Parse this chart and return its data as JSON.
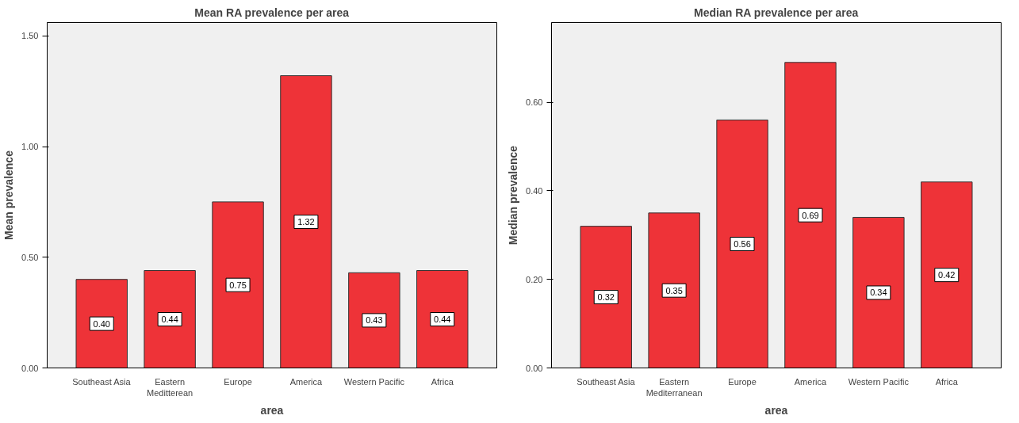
{
  "chart_data": [
    {
      "type": "bar",
      "title": "Mean RA prevalence per area",
      "xlabel": "area",
      "ylabel": "Mean prevalence",
      "categories": [
        "Southeast Asia",
        "Eastern\nMeditterean",
        "Europe",
        "America",
        "Western Pacific",
        "Africa"
      ],
      "values": [
        0.4,
        0.44,
        0.75,
        1.32,
        0.43,
        0.44
      ],
      "value_labels": [
        "0.40",
        "0.44",
        "0.75",
        "1.32",
        "0.43",
        "0.44"
      ],
      "color": "#ee3338",
      "ylim": [
        0,
        1.56
      ],
      "yticks": [
        {
          "value": 0,
          "label": "0.00"
        },
        {
          "value": 0.5,
          "label": "0.50"
        },
        {
          "value": 1.0,
          "label": "1.00"
        },
        {
          "value": 1.5,
          "label": "1.50"
        }
      ],
      "grid": false
    },
    {
      "type": "bar",
      "title": "Median RA prevalence per area",
      "xlabel": "area",
      "ylabel": "Median prevalence",
      "categories": [
        "Southeast Asia",
        "Eastern\nMediterranean",
        "Europe",
        "America",
        "Western Pacific",
        "Africa"
      ],
      "values": [
        0.32,
        0.35,
        0.56,
        0.69,
        0.34,
        0.42
      ],
      "value_labels": [
        "0.32",
        "0.35",
        "0.56",
        "0.69",
        "0.34",
        "0.42"
      ],
      "color": "#ee3338",
      "ylim": [
        0,
        0.78
      ],
      "yticks": [
        {
          "value": 0,
          "label": "0.00"
        },
        {
          "value": 0.2,
          "label": "0.20"
        },
        {
          "value": 0.4,
          "label": "0.40"
        },
        {
          "value": 0.6,
          "label": "0.60"
        }
      ],
      "grid": false
    }
  ]
}
